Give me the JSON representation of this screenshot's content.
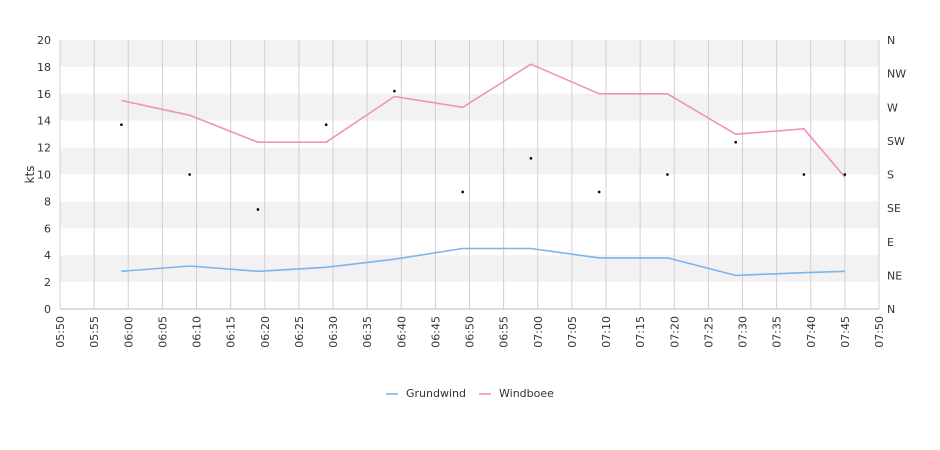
{
  "chart_data": {
    "type": "line",
    "title": "",
    "xlabel": "",
    "ylabel": "kts",
    "ylim": [
      0,
      20
    ],
    "y_ticks": [
      "0",
      "2",
      "4",
      "6",
      "8",
      "10",
      "12",
      "14",
      "16",
      "18",
      "20"
    ],
    "x_range": [
      "05:50",
      "07:50"
    ],
    "x_ticks": [
      "05:50",
      "05:55",
      "06:00",
      "06:05",
      "06:10",
      "06:15",
      "06:20",
      "06:25",
      "06:30",
      "06:35",
      "06:40",
      "06:45",
      "06:50",
      "06:55",
      "07:00",
      "07:05",
      "07:10",
      "07:15",
      "07:20",
      "07:25",
      "07:30",
      "07:35",
      "07:40",
      "07:45",
      "07:50"
    ],
    "right_axis_ticks": [
      "N",
      "NE",
      "E",
      "SE",
      "S",
      "SW",
      "W",
      "NW",
      "N"
    ],
    "grid": true,
    "legend_position": "bottom",
    "x": [
      "05:59",
      "06:09",
      "06:19",
      "06:29",
      "06:39",
      "06:49",
      "06:59",
      "07:09",
      "07:19",
      "07:29",
      "07:39",
      "07:45"
    ],
    "series": [
      {
        "name": "Grundwind",
        "color": "#7cb5ec",
        "values": [
          2.8,
          3.2,
          2.8,
          3.1,
          3.7,
          4.5,
          4.5,
          3.8,
          3.8,
          2.5,
          2.7,
          2.8
        ]
      },
      {
        "name": "Windboee",
        "color": "#f28fc2",
        "values": [
          15.5,
          14.4,
          12.4,
          12.4,
          15.8,
          15.0,
          18.2,
          16.0,
          16.0,
          13.0,
          13.4,
          9.8
        ]
      }
    ],
    "direction_values": [
      13.7,
      10.0,
      7.4,
      13.7,
      16.2,
      8.7,
      11.2,
      8.7,
      10.0,
      12.4,
      10.0,
      10.0
    ],
    "band_color": "#f2f2f2",
    "grid_color": "#d0d0d0"
  }
}
